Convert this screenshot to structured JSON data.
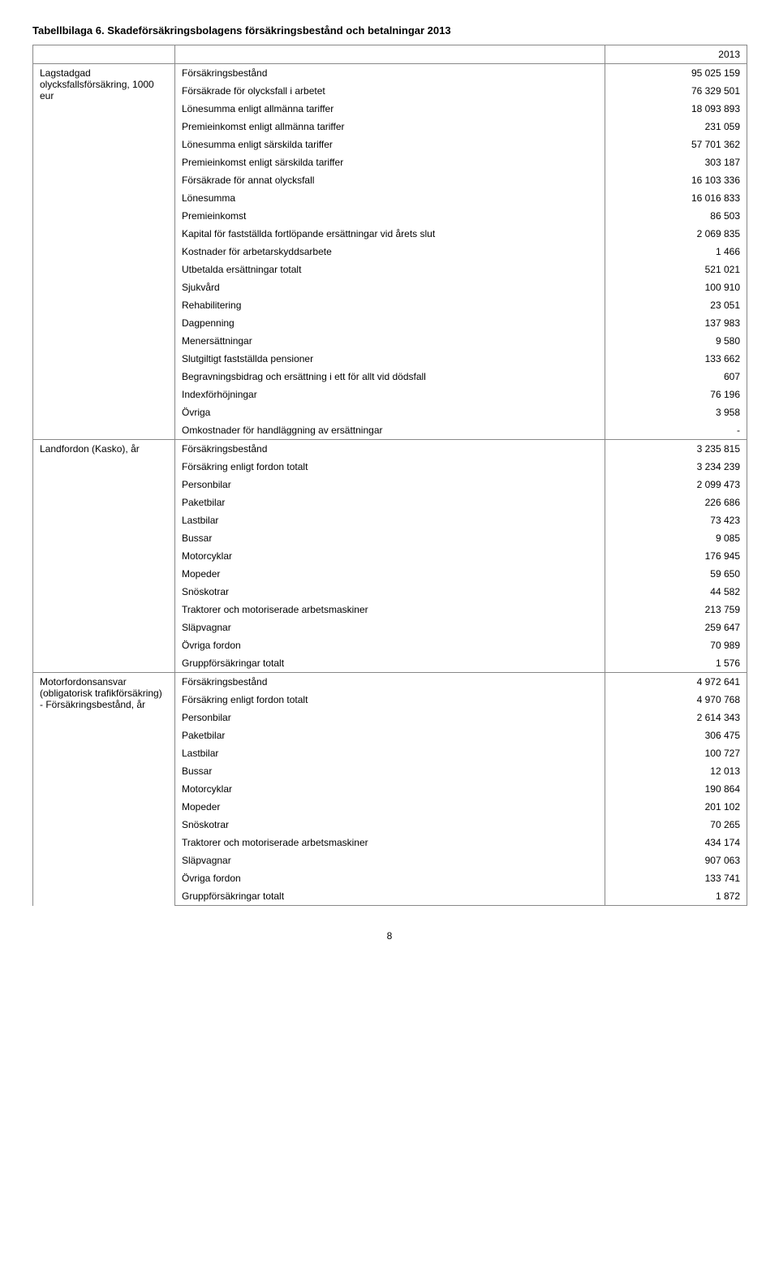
{
  "title": "Tabellbilaga 6. Skadeförsäkringsbolagens försäkringsbestånd och betalningar 2013",
  "year_header": "2013",
  "page_number": "8",
  "sections": [
    {
      "left_label": "Lagstadgad olycksfallsförsäkring, 1000 eur",
      "rows": [
        {
          "label": "Försäkringsbestånd",
          "value": "95 025 159"
        },
        {
          "label": "Försäkrade för olycksfall i arbetet",
          "value": "76 329 501"
        },
        {
          "label": "Lönesumma enligt allmänna tariffer",
          "value": "18 093 893"
        },
        {
          "label": "Premieinkomst enligt allmänna tariffer",
          "value": "231 059"
        },
        {
          "label": "Lönesumma enligt särskilda tariffer",
          "value": "57 701 362"
        },
        {
          "label": "Premieinkomst enligt särskilda tariffer",
          "value": "303 187"
        },
        {
          "label": "Försäkrade för annat olycksfall",
          "value": "16 103 336"
        },
        {
          "label": "Lönesumma",
          "value": "16 016 833"
        },
        {
          "label": "Premieinkomst",
          "value": "86 503"
        },
        {
          "label": "Kapital för fastställda fortlöpande ersättningar vid årets slut",
          "value": "2 069 835"
        },
        {
          "label": "Kostnader för arbetarskyddsarbete",
          "value": "1 466"
        },
        {
          "label": "Utbetalda ersättningar totalt",
          "value": "521 021"
        },
        {
          "label": "Sjukvård",
          "value": "100 910"
        },
        {
          "label": "Rehabilitering",
          "value": "23 051"
        },
        {
          "label": "Dagpenning",
          "value": "137 983"
        },
        {
          "label": "Menersättningar",
          "value": "9 580"
        },
        {
          "label": "Slutgiltigt fastställda pensioner",
          "value": "133 662"
        },
        {
          "label": "Begravningsbidrag och ersättning i ett för allt vid dödsfall",
          "value": "607"
        },
        {
          "label": "Indexförhöjningar",
          "value": "76 196"
        },
        {
          "label": "Övriga",
          "value": "3 958"
        },
        {
          "label": "Omkostnader för handläggning av ersättningar",
          "value": "-"
        }
      ]
    },
    {
      "left_label": "Landfordon (Kasko), år",
      "rows": [
        {
          "label": "Försäkringsbestånd",
          "value": "3 235 815"
        },
        {
          "label": "Försäkring enligt fordon totalt",
          "value": "3 234 239"
        },
        {
          "label": "Personbilar",
          "value": "2 099 473"
        },
        {
          "label": "Paketbilar",
          "value": "226 686"
        },
        {
          "label": "Lastbilar",
          "value": "73 423"
        },
        {
          "label": "Bussar",
          "value": "9 085"
        },
        {
          "label": "Motorcyklar",
          "value": "176 945"
        },
        {
          "label": "Mopeder",
          "value": "59 650"
        },
        {
          "label": "Snöskotrar",
          "value": "44 582"
        },
        {
          "label": "Traktorer och motoriserade arbetsmaskiner",
          "value": "213 759"
        },
        {
          "label": "Släpvagnar",
          "value": "259 647"
        },
        {
          "label": "Övriga fordon",
          "value": "70 989"
        },
        {
          "label": "Gruppförsäkringar totalt",
          "value": "1 576"
        }
      ]
    },
    {
      "left_label": "Motorfordonsansvar (obligatorisk trafikförsäkring) - Försäkringsbestånd, år",
      "rows": [
        {
          "label": "Försäkringsbestånd",
          "value": "4 972 641"
        },
        {
          "label": "Försäkring enligt fordon totalt",
          "value": "4 970 768"
        },
        {
          "label": "Personbilar",
          "value": "2 614 343"
        },
        {
          "label": "Paketbilar",
          "value": "306 475"
        },
        {
          "label": "Lastbilar",
          "value": "100 727"
        },
        {
          "label": "Bussar",
          "value": "12 013"
        },
        {
          "label": "Motorcyklar",
          "value": "190 864"
        },
        {
          "label": "Mopeder",
          "value": "201 102"
        },
        {
          "label": "Snöskotrar",
          "value": "70 265"
        },
        {
          "label": "Traktorer och motoriserade arbetsmaskiner",
          "value": "434 174"
        },
        {
          "label": "Släpvagnar",
          "value": "907 063"
        },
        {
          "label": "Övriga fordon",
          "value": "133 741"
        },
        {
          "label": "Gruppförsäkringar totalt",
          "value": "1 872"
        }
      ]
    }
  ]
}
